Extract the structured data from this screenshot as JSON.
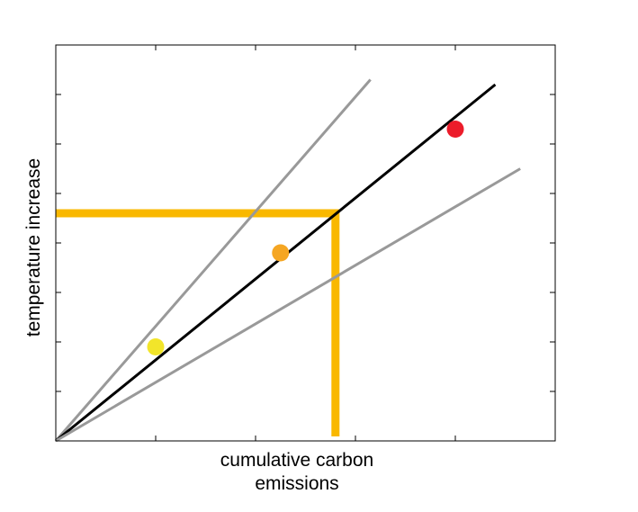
{
  "chart_data": {
    "type": "line",
    "title": "",
    "xlabel_line1": "cumulative carbon",
    "xlabel_line2": "emissions",
    "ylabel": "temperature increase",
    "xlim": [
      0,
      10
    ],
    "ylim": [
      0,
      8
    ],
    "xticks": [
      2,
      4,
      6,
      8
    ],
    "yticks": [
      1,
      2,
      3,
      4,
      5,
      6,
      7
    ],
    "tick_labels_shown": false,
    "grid": false,
    "legend": "none",
    "series": [
      {
        "x": [
          0,
          6.3
        ],
        "y": [
          0,
          7.3
        ],
        "color": "#999999"
      },
      {
        "x": [
          0,
          8.8
        ],
        "y": [
          0,
          7.2
        ],
        "color": "#000000"
      },
      {
        "x": [
          0,
          9.3
        ],
        "y": [
          0,
          5.5
        ],
        "color": "#999999"
      }
    ],
    "points": [
      {
        "x": 2.0,
        "y": 1.9,
        "color": "#f2e52a"
      },
      {
        "x": 4.5,
        "y": 3.8,
        "color": "#f5a623"
      },
      {
        "x": 8.0,
        "y": 6.3,
        "color": "#ec1c2a"
      }
    ],
    "threshold": {
      "x": 5.6,
      "y": 4.6,
      "color": "#f9b800"
    },
    "colors": {
      "axes": "#000000",
      "background": "#ffffff"
    }
  }
}
